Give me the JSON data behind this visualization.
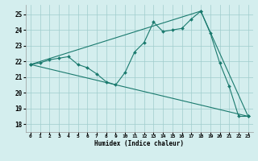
{
  "xlabel": "Humidex (Indice chaleur)",
  "bg_color": "#d4eeee",
  "grid_color": "#a0cccc",
  "line_color": "#1a7a6e",
  "xlim": [
    -0.5,
    23.5
  ],
  "ylim": [
    17.5,
    25.6
  ],
  "yticks": [
    18,
    19,
    20,
    21,
    22,
    23,
    24,
    25
  ],
  "xticks": [
    0,
    1,
    2,
    3,
    4,
    5,
    6,
    7,
    8,
    9,
    10,
    11,
    12,
    13,
    14,
    15,
    16,
    17,
    18,
    19,
    20,
    21,
    22,
    23
  ],
  "line1_x": [
    0,
    1,
    2,
    3,
    4,
    5,
    6,
    7,
    8,
    9,
    10,
    11,
    12,
    13,
    14,
    15,
    16,
    17,
    18,
    19,
    20,
    21,
    22,
    23
  ],
  "line1_y": [
    21.8,
    21.9,
    22.1,
    22.2,
    22.3,
    21.8,
    21.6,
    21.2,
    20.7,
    20.5,
    21.3,
    22.6,
    23.2,
    24.5,
    23.9,
    24.0,
    24.1,
    24.7,
    25.2,
    23.8,
    21.9,
    20.4,
    18.5,
    18.5
  ],
  "line2_x": [
    0,
    18,
    23
  ],
  "line2_y": [
    21.8,
    25.2,
    18.5
  ],
  "line3_x": [
    0,
    23
  ],
  "line3_y": [
    21.8,
    18.5
  ]
}
